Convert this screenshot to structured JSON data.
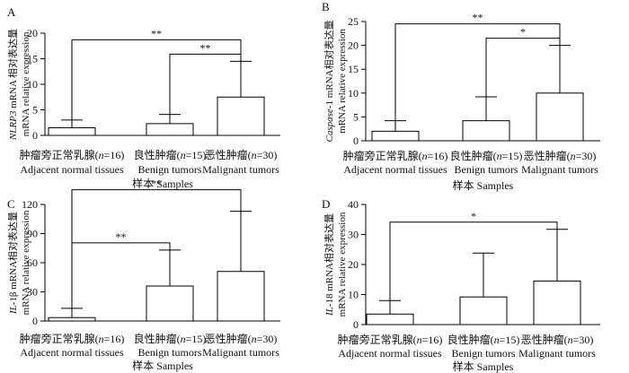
{
  "chart_data": [
    {
      "type": "bar",
      "panel_label": "A",
      "ylabel_lines": [
        [
          {
            "t": "NLRP3",
            "i": true
          },
          {
            "t": " mRNA 相对表达量",
            "i": false
          }
        ],
        [
          {
            "t": "mRNA relative expression",
            "i": false
          }
        ]
      ],
      "ylim": [
        0,
        20
      ],
      "yticks": [
        0,
        5,
        10,
        15,
        20
      ],
      "categories": [
        {
          "cn": [
            {
              "t": "肿瘤旁正常乳腺(",
              "i": false
            },
            {
              "t": "n",
              "i": true
            },
            {
              "t": "=16)",
              "i": false
            }
          ],
          "en": "Adjacent normal tissues"
        },
        {
          "cn": [
            {
              "t": "良性肿瘤(",
              "i": false
            },
            {
              "t": "n",
              "i": true
            },
            {
              "t": "=15)",
              "i": false
            }
          ],
          "en": "Benign tumors"
        },
        {
          "cn": [
            {
              "t": "恶性肿瘤(",
              "i": false
            },
            {
              "t": "n",
              "i": true
            },
            {
              "t": "=30)",
              "i": false
            }
          ],
          "en": "Malignant tumors"
        }
      ],
      "values": [
        1.5,
        2.3,
        7.5
      ],
      "errors": [
        1.5,
        1.8,
        7.0
      ],
      "significance": [
        {
          "from": 0,
          "to": 2,
          "label": "**"
        },
        {
          "from": 1,
          "to": 2,
          "label": "**"
        }
      ],
      "xlabel": "样本 Samples"
    },
    {
      "type": "bar",
      "panel_label": "B",
      "ylabel_lines": [
        [
          {
            "t": "Caspase",
            "i": true
          },
          {
            "t": "-1 mRNA相对表达量",
            "i": false
          }
        ],
        [
          {
            "t": "mRNA relative expression",
            "i": false
          }
        ]
      ],
      "ylim": [
        0,
        25
      ],
      "yticks": [
        0,
        5,
        10,
        15,
        20,
        25
      ],
      "categories": [
        {
          "cn": [
            {
              "t": "肿瘤旁正常乳腺(",
              "i": false
            },
            {
              "t": "n",
              "i": true
            },
            {
              "t": "=16)",
              "i": false
            }
          ],
          "en": "Adjacent normal tissues"
        },
        {
          "cn": [
            {
              "t": "良性肿瘤(",
              "i": false
            },
            {
              "t": "n",
              "i": true
            },
            {
              "t": "=15)",
              "i": false
            }
          ],
          "en": "Benign tumors"
        },
        {
          "cn": [
            {
              "t": "恶性肿瘤(",
              "i": false
            },
            {
              "t": "n",
              "i": true
            },
            {
              "t": "=30)",
              "i": false
            }
          ],
          "en": "Malignant tumors"
        }
      ],
      "values": [
        2.0,
        4.2,
        10.0
      ],
      "errors": [
        2.2,
        5.0,
        10.0
      ],
      "significance": [
        {
          "from": 0,
          "to": 2,
          "label": "**"
        },
        {
          "from": 1,
          "to": 2,
          "label": "*"
        }
      ],
      "xlabel": "样本 Samples"
    },
    {
      "type": "bar",
      "panel_label": "C",
      "ylabel_lines": [
        [
          {
            "t": "IL",
            "i": true
          },
          {
            "t": "-1β mRNA相对表达量",
            "i": false
          }
        ],
        [
          {
            "t": "mRNA relative expression",
            "i": false
          }
        ]
      ],
      "ylim": [
        0,
        120
      ],
      "yticks": [
        0,
        30,
        60,
        90,
        120
      ],
      "categories": [
        {
          "cn": [
            {
              "t": "肿瘤旁正常乳腺(",
              "i": false
            },
            {
              "t": "n",
              "i": true
            },
            {
              "t": "=16)",
              "i": false
            }
          ],
          "en": "Adjacent normal tissues"
        },
        {
          "cn": [
            {
              "t": "良性肿瘤(",
              "i": false
            },
            {
              "t": "n",
              "i": true
            },
            {
              "t": "=15)",
              "i": false
            }
          ],
          "en": "Benign tumors"
        },
        {
          "cn": [
            {
              "t": "恶性肿瘤(",
              "i": false
            },
            {
              "t": "n",
              "i": true
            },
            {
              "t": "=30)",
              "i": false
            }
          ],
          "en": "Malignant tumors"
        }
      ],
      "values": [
        3.5,
        36,
        51
      ],
      "errors": [
        9.5,
        37,
        62
      ],
      "significance": [
        {
          "from": 0,
          "to": 2,
          "label": "**"
        },
        {
          "from": 0,
          "to": 1,
          "label": "**"
        }
      ],
      "xlabel": "样本 Samples"
    },
    {
      "type": "bar",
      "panel_label": "D",
      "ylabel_lines": [
        [
          {
            "t": "IL",
            "i": true
          },
          {
            "t": "-18 mRNA相对表达量",
            "i": false
          }
        ],
        [
          {
            "t": "mRNA relative expression",
            "i": false
          }
        ]
      ],
      "ylim": [
        0,
        40
      ],
      "yticks": [
        0,
        10,
        20,
        30,
        40
      ],
      "categories": [
        {
          "cn": [
            {
              "t": "肿瘤旁正常乳腺(",
              "i": false
            },
            {
              "t": "n",
              "i": true
            },
            {
              "t": "=16)",
              "i": false
            }
          ],
          "en": "Adjacent normal tissues"
        },
        {
          "cn": [
            {
              "t": "良性肿瘤(",
              "i": false
            },
            {
              "t": "n",
              "i": true
            },
            {
              "t": "=15)",
              "i": false
            }
          ],
          "en": "Benign tumors"
        },
        {
          "cn": [
            {
              "t": "恶性肿瘤(",
              "i": false
            },
            {
              "t": "n",
              "i": true
            },
            {
              "t": "=30)",
              "i": false
            }
          ],
          "en": "Malignant tumors"
        }
      ],
      "values": [
        3.5,
        9.2,
        14.5
      ],
      "errors": [
        4.5,
        14.6,
        17.2
      ],
      "significance": [
        {
          "from": 0,
          "to": 2,
          "label": "*"
        }
      ],
      "xlabel": "样本 Samples"
    }
  ]
}
